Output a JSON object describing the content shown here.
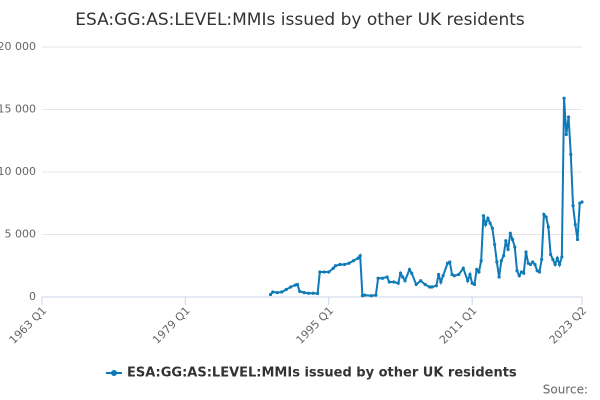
{
  "chart_data": {
    "type": "line",
    "title": "ESA:GG:AS:LEVEL:MMIs issued by other UK residents",
    "source": "Source:",
    "x": [
      1988.5,
      1988.75,
      1989.25,
      1989.75,
      1990.25,
      1990.75,
      1991.25,
      1991.5,
      1991.75,
      1992.25,
      1992.75,
      1993.25,
      1993.75,
      1994,
      1994.5,
      1995,
      1995.5,
      1995.75,
      1996.25,
      1996.75,
      1997.25,
      1997.75,
      1998.25,
      1998.5,
      1998.75,
      1999,
      1999.75,
      2000.25,
      2000.5,
      2001,
      2001.5,
      2001.75,
      2002.25,
      2002.75,
      2003,
      2003.25,
      2003.5,
      2004,
      2004.25,
      2004.75,
      2005.25,
      2005.75,
      2006.25,
      2006.5,
      2007,
      2007.25,
      2007.5,
      2007.75,
      2008.25,
      2008.5,
      2008.75,
      2009,
      2009.5,
      2010,
      2010.5,
      2010.75,
      2011,
      2011.25,
      2011.5,
      2011.75,
      2012,
      2012.25,
      2012.5,
      2012.75,
      2013,
      2013.25,
      2013.5,
      2013.75,
      2014,
      2014.25,
      2014.5,
      2014.75,
      2015,
      2015.25,
      2015.5,
      2015.75,
      2016,
      2016.25,
      2016.5,
      2016.75,
      2017,
      2017.25,
      2017.5,
      2017.75,
      2018,
      2018.25,
      2018.5,
      2018.75,
      2019,
      2019.25,
      2019.5,
      2019.75,
      2020,
      2020.25,
      2020.5,
      2020.75,
      2021,
      2021.25,
      2021.5,
      2021.75,
      2022,
      2022.25,
      2022.5,
      2022.75,
      2023,
      2023.25
    ],
    "series": [
      {
        "name": "ESA:GG:AS:LEVEL:MMIs issued by other UK residents",
        "color": "#0f7ab8",
        "values": [
          200,
          400,
          350,
          400,
          600,
          800,
          950,
          1000,
          450,
          350,
          300,
          300,
          280,
          2000,
          2000,
          2000,
          2300,
          2500,
          2600,
          2600,
          2700,
          2900,
          3100,
          3300,
          100,
          150,
          100,
          150,
          1500,
          1500,
          1600,
          1200,
          1200,
          1100,
          1900,
          1600,
          1300,
          2200,
          1900,
          1000,
          1300,
          1000,
          800,
          800,
          900,
          1800,
          1200,
          1700,
          2700,
          2800,
          1800,
          1700,
          1800,
          2300,
          1300,
          1800,
          1100,
          1000,
          2200,
          2000,
          2900,
          6500,
          5800,
          6300,
          5900,
          5500,
          4200,
          2800,
          1600,
          2900,
          3300,
          4500,
          3800,
          5100,
          4600,
          4000,
          2100,
          1700,
          2000,
          1900,
          3600,
          2700,
          2600,
          2800,
          2600,
          2100,
          2000,
          3000,
          6600,
          6400,
          5600,
          3400,
          3000,
          2600,
          3100,
          2600,
          3200,
          15900,
          13000,
          14400,
          11400,
          7300,
          5800,
          4600,
          7500,
          7600
        ]
      }
    ],
    "xlim": [
      1963,
      2023.25
    ],
    "xticks": [
      {
        "value": 1963,
        "label": "1963 Q1"
      },
      {
        "value": 1979,
        "label": "1979 Q1"
      },
      {
        "value": 1995,
        "label": "1995 Q1"
      },
      {
        "value": 2011,
        "label": "2011 Q1"
      },
      {
        "value": 2023.25,
        "label": "2023 Q2"
      }
    ],
    "ylim": [
      0,
      20000
    ],
    "yticks": [
      0,
      {
        "value": 5000,
        "label": "5 000"
      },
      {
        "value": 10000,
        "label": "10 000"
      },
      {
        "value": 15000,
        "label": "15 000"
      },
      {
        "value": 20000,
        "label": "20 000"
      }
    ],
    "grid": true
  }
}
